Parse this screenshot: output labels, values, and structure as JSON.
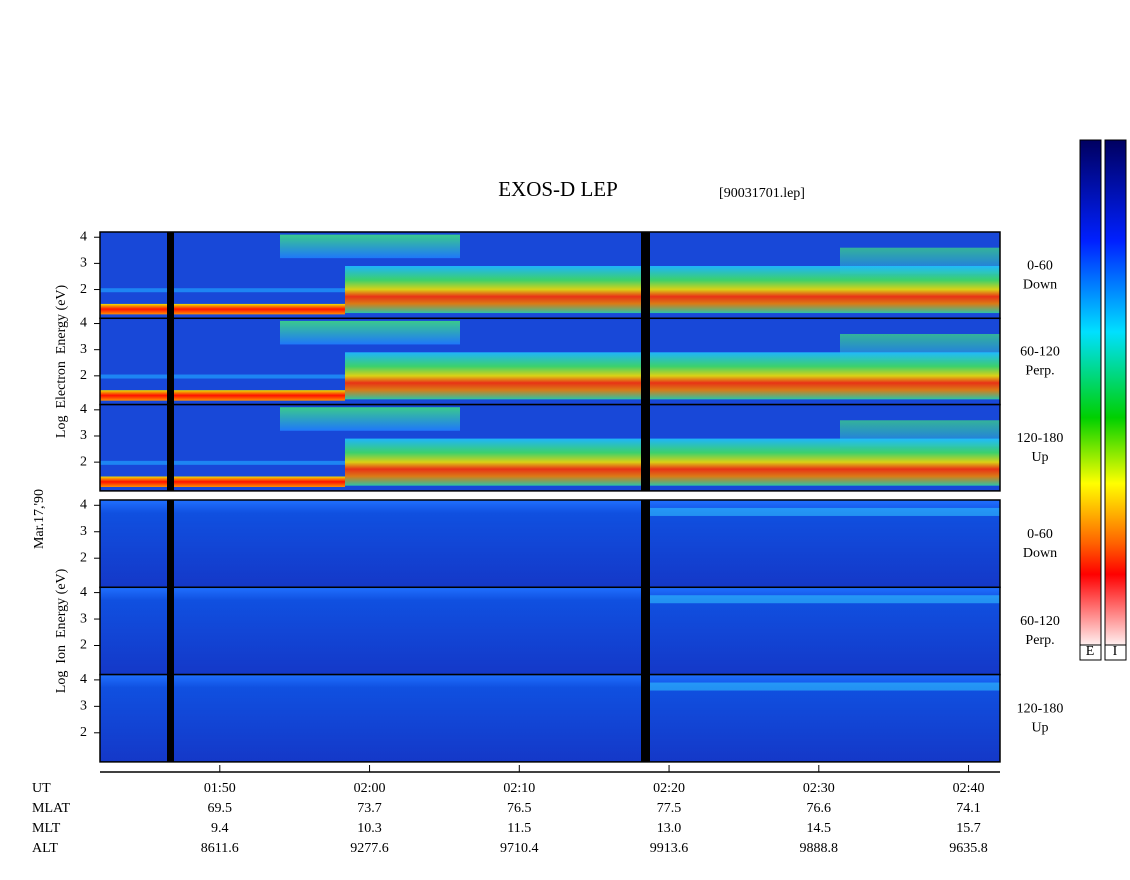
{
  "chart_data": {
    "type": "spectrogram",
    "title": "EXOS-D LEP",
    "file": "[90031701.lep]",
    "date": "Mar.17,'90",
    "groups": [
      {
        "ylabel": "Log  Electron  Energy (eV)",
        "panels": [
          [
            "0-60",
            "Down"
          ],
          [
            "60-120",
            "Perp."
          ],
          [
            "120-180",
            "Up"
          ]
        ]
      },
      {
        "ylabel": "Log  Ion  Energy (eV)",
        "panels": [
          [
            "0-60",
            "Down"
          ],
          [
            "60-120",
            "Perp."
          ],
          [
            "120-180",
            "Up"
          ]
        ]
      }
    ],
    "ylim": [
      0.9,
      4.2
    ],
    "yticks": [
      2,
      3,
      4
    ],
    "xlim": [
      102,
      162.1
    ],
    "xticks": [
      {
        "value": 110,
        "label": "01:50"
      },
      {
        "value": 120,
        "label": "02:00"
      },
      {
        "value": 130,
        "label": "02:10"
      },
      {
        "value": 140,
        "label": "02:20"
      },
      {
        "value": 150,
        "label": "02:30"
      },
      {
        "value": 160,
        "label": "02:40"
      }
    ],
    "x_label": "UT",
    "ephemeris": [
      {
        "name": "MLAT",
        "values": [
          "69.5",
          "73.7",
          "76.5",
          "77.5",
          "76.6",
          "74.1"
        ]
      },
      {
        "name": "MLT",
        "values": [
          "9.4",
          "10.3",
          "11.5",
          "13.0",
          "14.5",
          "15.7"
        ]
      },
      {
        "name": "ALT",
        "values": [
          "8611.6",
          "9277.6",
          "9710.4",
          "9913.6",
          "9888.8",
          "9635.8"
        ]
      }
    ],
    "colorbar_labels": [
      "E",
      "I"
    ]
  }
}
